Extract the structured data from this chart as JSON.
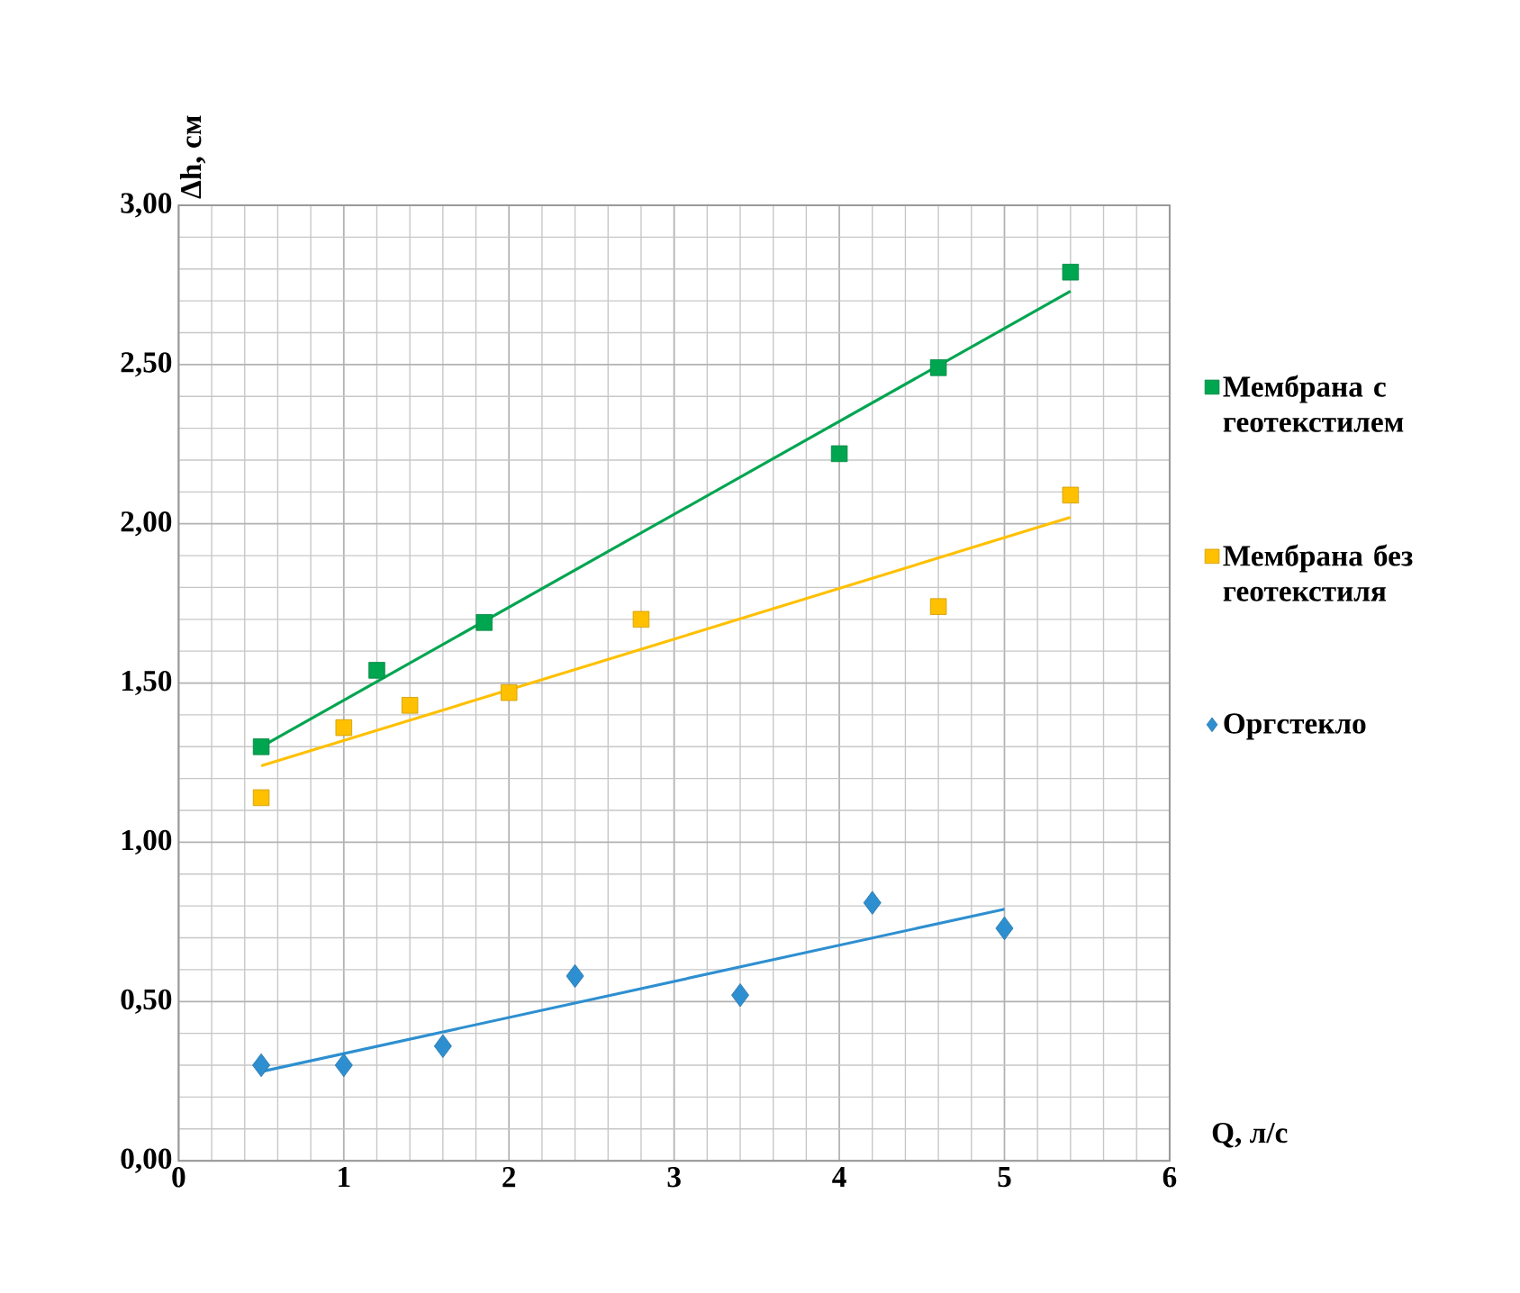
{
  "chart_data": {
    "type": "scatter",
    "xlabel": "Q, л/с",
    "ylabel": "Δh, см",
    "xlim": [
      0,
      6
    ],
    "ylim": [
      0,
      3
    ],
    "xticks": [
      0,
      1,
      2,
      3,
      4,
      5,
      6
    ],
    "yticks": [
      {
        "value": 0,
        "label": "0,00"
      },
      {
        "value": 0.5,
        "label": "0,50"
      },
      {
        "value": 1,
        "label": "1,00"
      },
      {
        "value": 1.5,
        "label": "1,50"
      },
      {
        "value": 2,
        "label": "2,00"
      },
      {
        "value": 2.5,
        "label": "2,50"
      },
      {
        "value": 3,
        "label": "3,00"
      }
    ],
    "grid": true,
    "legend": "right",
    "series": [
      {
        "name": "Мембрана с геотекстилем",
        "marker": "square",
        "color": "#00a550",
        "x": [
          0.5,
          1.2,
          1.85,
          4.0,
          4.6,
          5.4
        ],
        "values": [
          1.3,
          1.54,
          1.69,
          2.22,
          2.49,
          2.79
        ]
      },
      {
        "name": "Мембрана без геотекстиля",
        "marker": "square",
        "color": "#ffc000",
        "x": [
          0.5,
          1.0,
          1.4,
          2.0,
          2.8,
          4.6,
          5.4
        ],
        "values": [
          1.14,
          1.36,
          1.43,
          1.47,
          1.7,
          1.74,
          2.09
        ]
      },
      {
        "name": "Оргстекло",
        "marker": "diamond",
        "color": "#2e8fd0",
        "x": [
          0.5,
          1.0,
          1.6,
          2.4,
          3.4,
          4.2,
          5.0
        ],
        "values": [
          0.3,
          0.3,
          0.36,
          0.58,
          0.52,
          0.81,
          0.73
        ]
      },
      {
        "type": "line",
        "marker": "none",
        "color": "#00a550",
        "x": [
          0.5,
          5.4
        ],
        "values": [
          1.3,
          2.73
        ]
      },
      {
        "type": "line",
        "marker": "none",
        "color": "#ffc000",
        "x": [
          0.5,
          5.4
        ],
        "values": [
          1.24,
          2.02
        ]
      },
      {
        "type": "line",
        "marker": "none",
        "color": "#2e8fd0",
        "x": [
          0.5,
          5.0
        ],
        "values": [
          0.28,
          0.79
        ]
      }
    ]
  }
}
